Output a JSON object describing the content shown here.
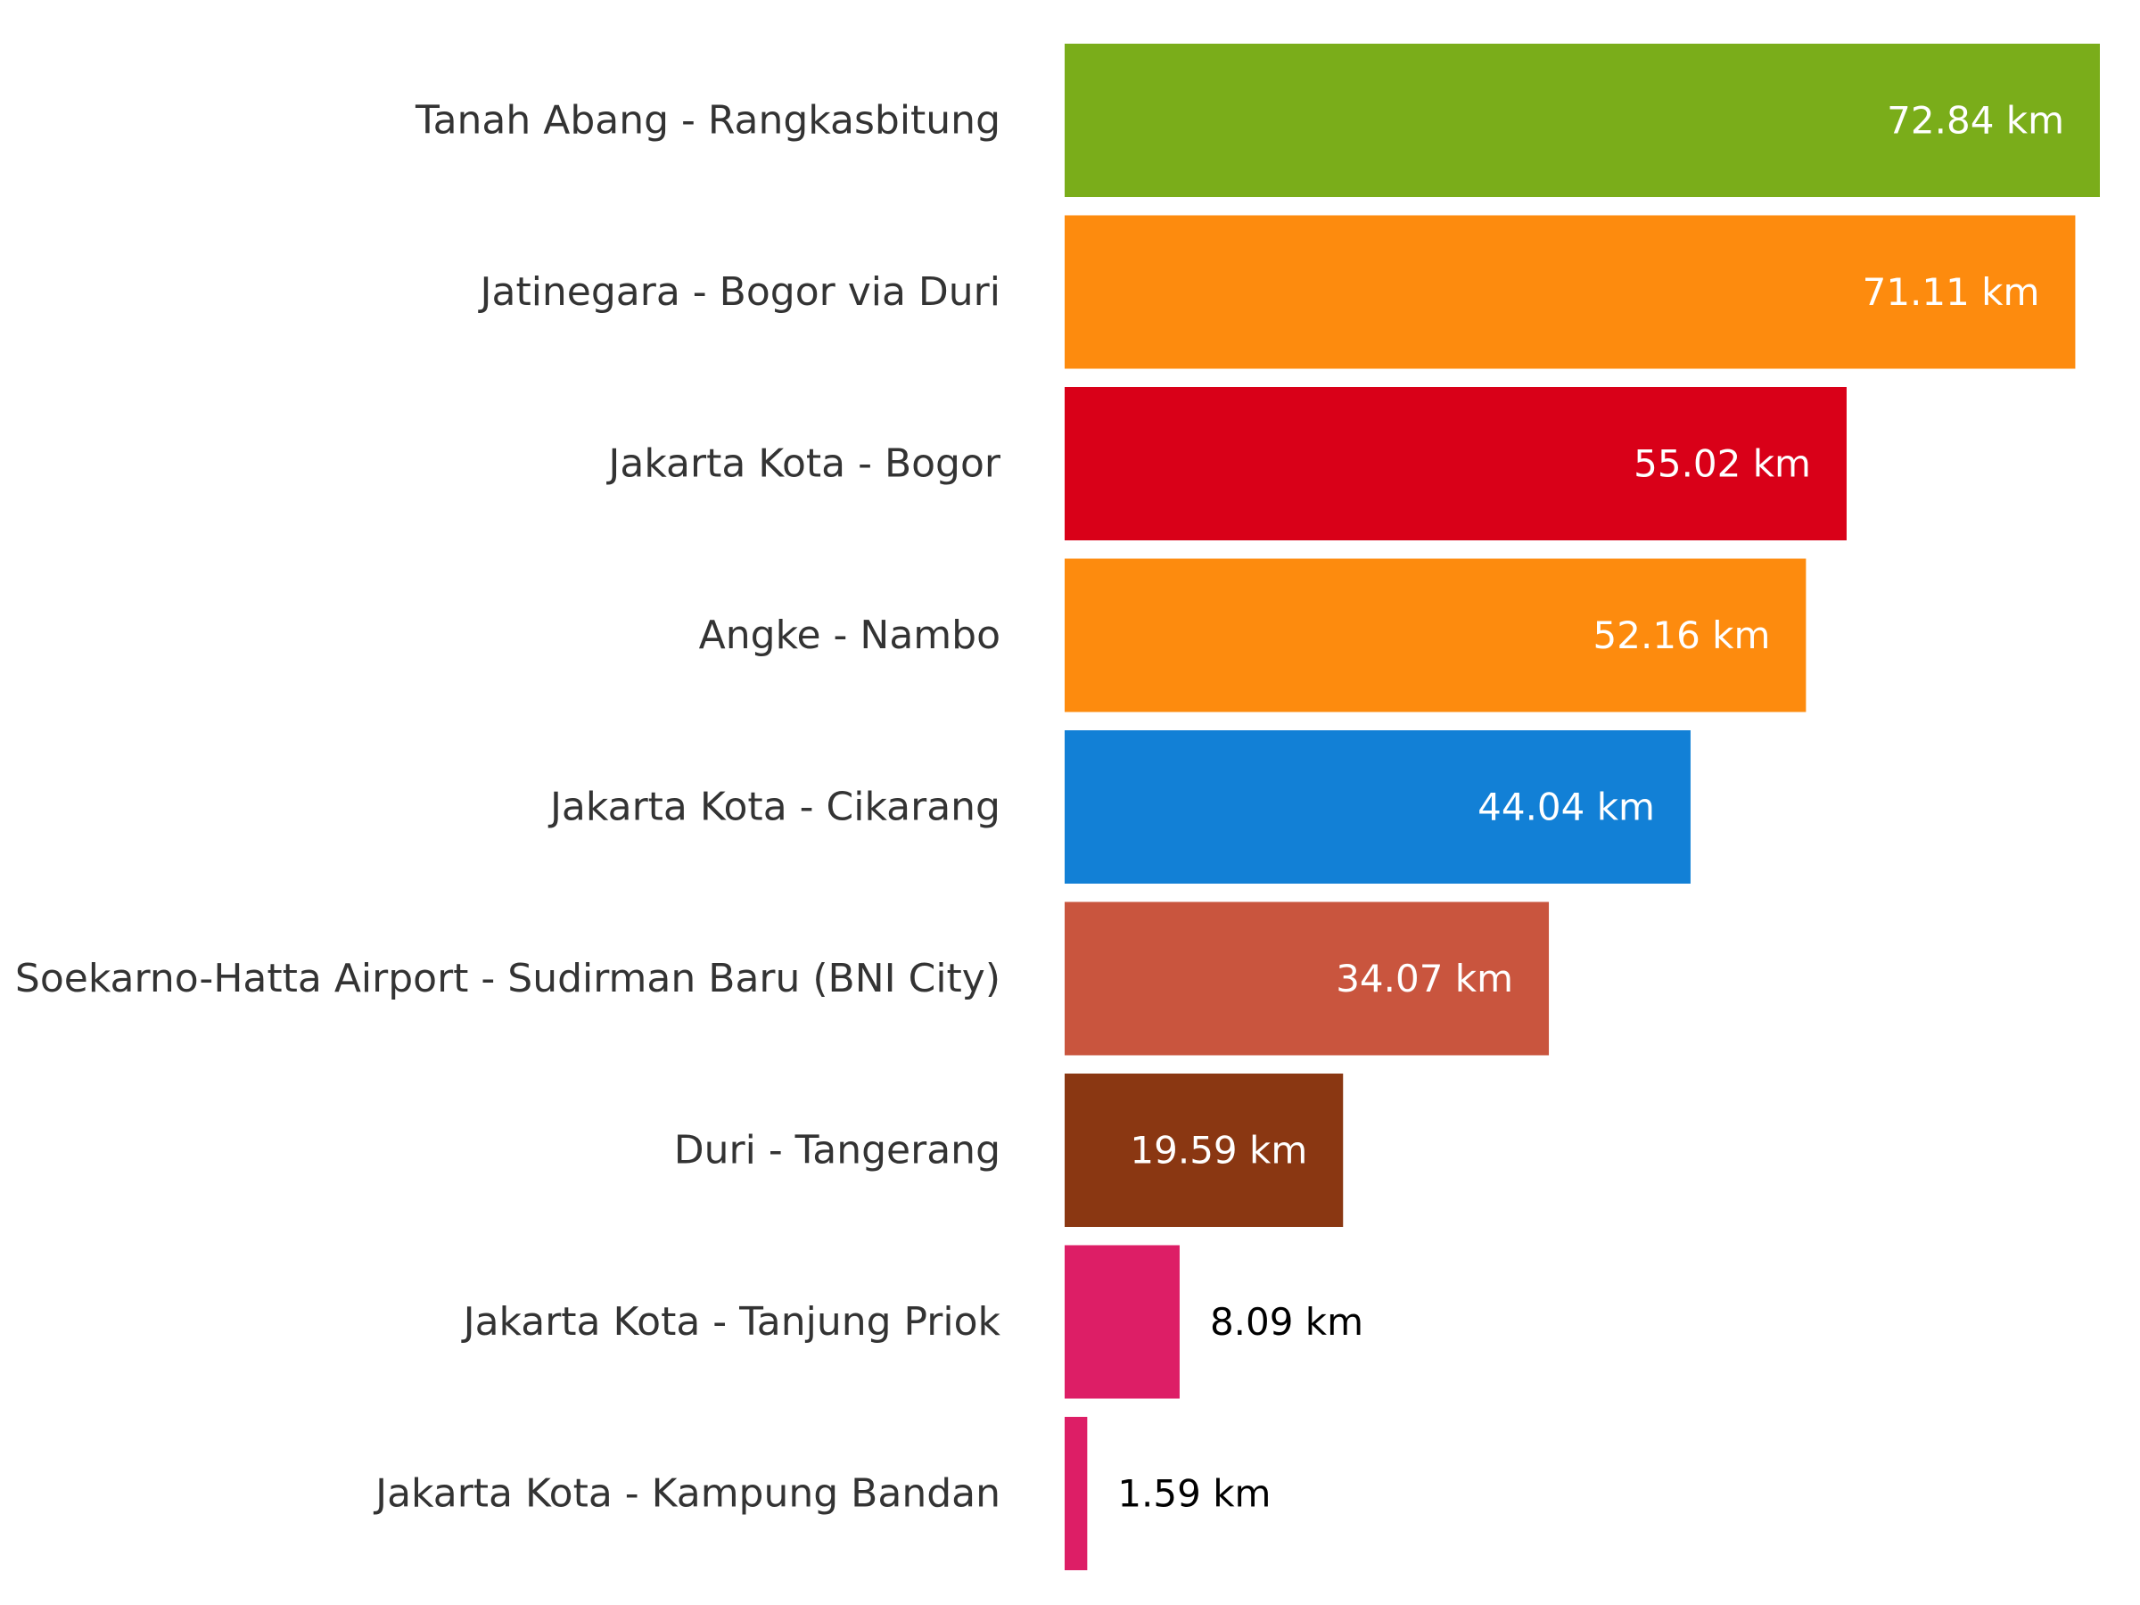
{
  "chart_data": {
    "type": "bar",
    "orientation": "horizontal",
    "categories": [
      "Tanah Abang - Rangkasbitung",
      "Jatinegara - Bogor via Duri",
      "Jakarta Kota - Bogor",
      "Angke - Nambo",
      "Jakarta Kota - Cikarang",
      "Soekarno-Hatta Airport - Sudirman Baru (BNI City)",
      "Duri - Tangerang",
      "Jakarta Kota - Tanjung Priok",
      "Jakarta Kota - Kampung Bandan"
    ],
    "values": [
      72.84,
      71.11,
      55.02,
      52.16,
      44.04,
      34.07,
      19.59,
      8.09,
      1.59
    ],
    "data_labels": [
      "72.84 km",
      "71.11 km",
      "55.02 km",
      "52.16 km",
      "44.04 km",
      "34.07 km",
      "19.59 km",
      "8.09 km",
      "1.59 km"
    ],
    "colors": [
      "#7aad1a",
      "#fd8b0e",
      "#d90018",
      "#fd8b0e",
      "#1280d6",
      "#c9553e",
      "#8a3712",
      "#dd1e66",
      "#dd1e66"
    ],
    "title": "",
    "xlabel": "",
    "ylabel": "",
    "xlim": [
      0,
      72.84
    ],
    "grid": false,
    "legend": "none"
  }
}
